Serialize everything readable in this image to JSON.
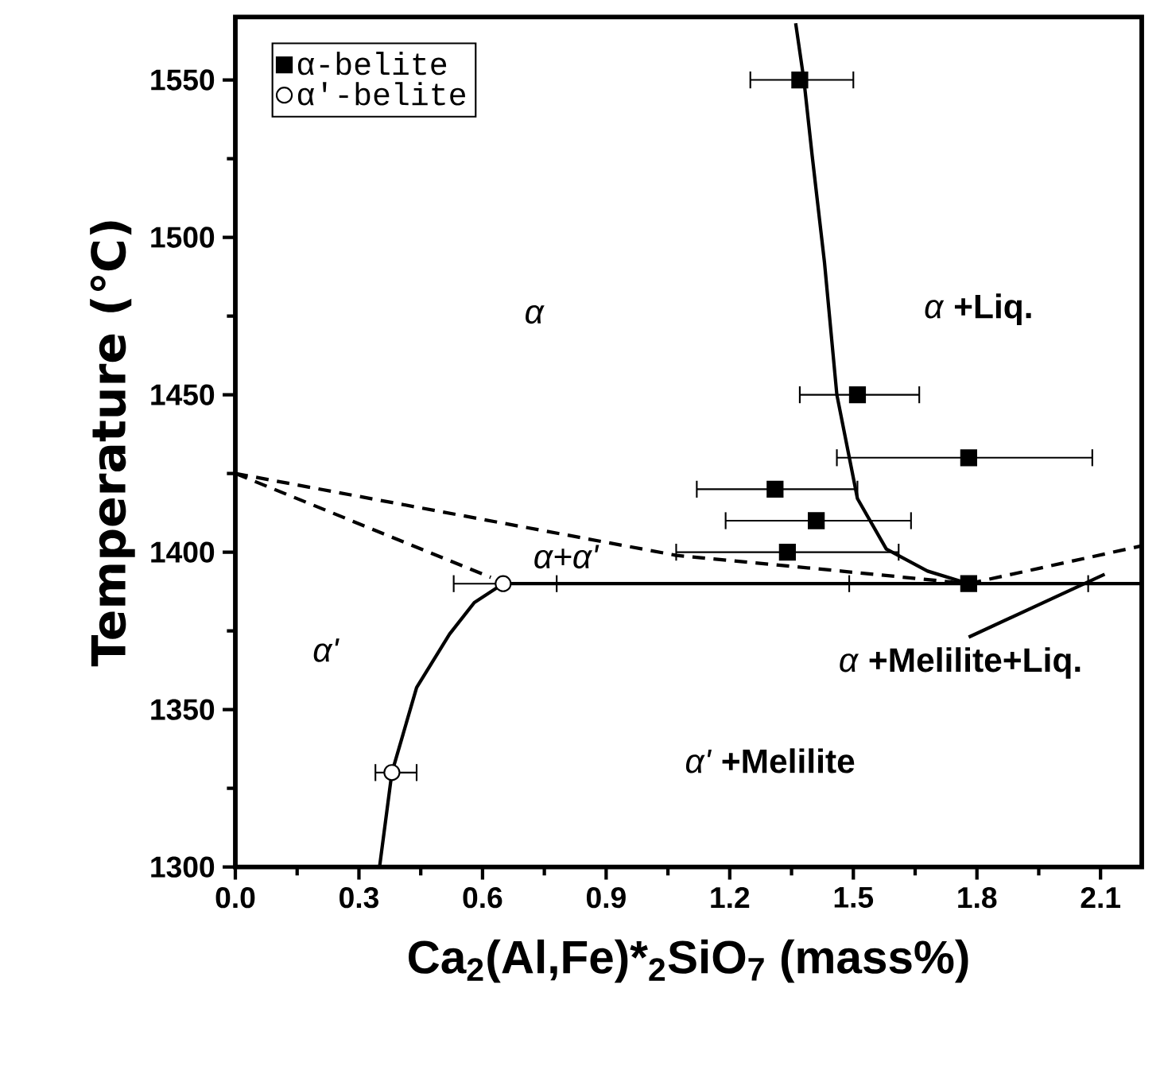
{
  "chart_data": {
    "type": "scatter",
    "xlabel": "Ca$_{2}$(Al,Fe)*$_{2}$SiO$_{7}$ (mass%)",
    "ylabel": "Temperature (℃)",
    "xlim": [
      0,
      2.2
    ],
    "ylim": [
      1300,
      1570
    ],
    "xticks": [
      {
        "value": 0,
        "label": "0.0"
      },
      0.3,
      0.6,
      0.9,
      1.2,
      1.5,
      1.8,
      2.1
    ],
    "yticks": [
      1300,
      1350,
      1400,
      1450,
      1500,
      1550
    ],
    "legend": "top left",
    "grid": false,
    "series": [
      {
        "name": "α-belite",
        "marker": "square",
        "color": "#000000",
        "x": [
          1.37,
          1.51,
          1.78,
          1.31,
          1.41,
          1.34,
          1.78
        ],
        "values": [
          1550,
          1450,
          1430,
          1420,
          1410,
          1400,
          1390
        ],
        "xerrors": [
          [
            1.25,
            1.5
          ],
          [
            1.37,
            1.66
          ],
          [
            1.46,
            2.08
          ],
          [
            1.12,
            1.51
          ],
          [
            1.19,
            1.64
          ],
          [
            1.07,
            1.61
          ],
          [
            1.49,
            2.07
          ]
        ]
      },
      {
        "name": "α'-belite",
        "marker": "circle",
        "color": "#000000",
        "x": [
          0.65,
          0.38
        ],
        "values": [
          1390,
          1330
        ],
        "xerrors": [
          [
            0.53,
            0.78
          ],
          [
            0.34,
            0.44
          ]
        ]
      },
      {
        "type": "line",
        "line_style": "solid",
        "marker": "none",
        "color": "#000000",
        "x": [
          1.36,
          1.38,
          1.4,
          1.43,
          1.46,
          1.51,
          1.58,
          1.68,
          1.78
        ],
        "values": [
          1568,
          1550,
          1526,
          1492,
          1450,
          1417,
          1401,
          1394,
          1390
        ]
      },
      {
        "type": "line",
        "line_style": "solid",
        "marker": "none",
        "color": "#000000",
        "x": [
          0.65,
          2.2
        ],
        "values": [
          1390,
          1390
        ]
      },
      {
        "type": "line",
        "line_style": "solid",
        "marker": "none",
        "color": "#000000",
        "x": [
          0.35,
          0.38,
          0.44,
          0.52,
          0.58,
          0.65
        ],
        "values": [
          1300,
          1330,
          1357,
          1374,
          1384,
          1390
        ]
      },
      {
        "type": "line",
        "line_style": "dashed",
        "marker": "none",
        "color": "#000000",
        "x": [
          0,
          1.07,
          1.47,
          1.78
        ],
        "values": [
          1425,
          1399,
          1394,
          1390
        ]
      },
      {
        "type": "line",
        "line_style": "dashed",
        "marker": "none",
        "color": "#000000",
        "x": [
          0,
          0.62
        ],
        "values": [
          1425,
          1392
        ]
      },
      {
        "type": "line",
        "line_style": "dashed",
        "marker": "none",
        "color": "#000000",
        "x": [
          1.78,
          2.2
        ],
        "values": [
          1390,
          1402
        ]
      },
      {
        "type": "line",
        "line_style": "solid",
        "marker": "none",
        "color": "#000000",
        "x": [
          1.78,
          2.11
        ],
        "values": [
          1373,
          1393
        ]
      }
    ],
    "annotations": [
      "*α*",
      "*α* **+Liq.**",
      "*α+α'*",
      "*α'*",
      "*α* **+Melilite+Liq.**",
      "*α'* **+Melilite**"
    ]
  }
}
